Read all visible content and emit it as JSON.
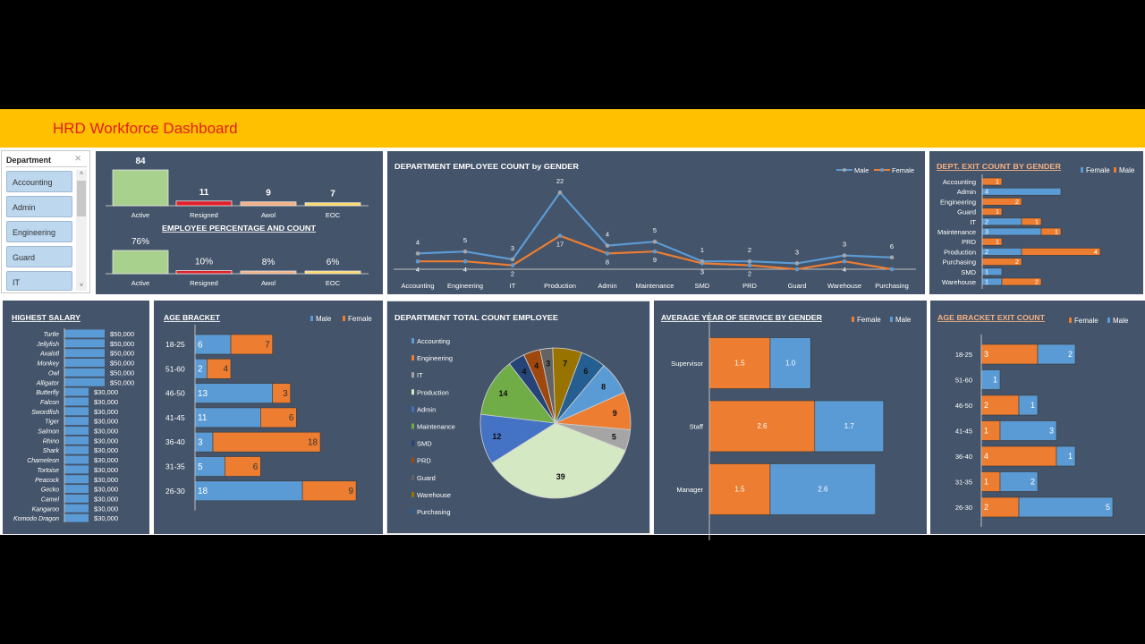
{
  "header": {
    "title": "HRD Workforce Dashboard"
  },
  "slicer": {
    "title": "Department",
    "items": [
      "Accounting",
      "Admin",
      "Engineering",
      "Guard",
      "IT"
    ]
  },
  "colors": {
    "banner": "#FFC000",
    "panel": "#44546A",
    "male": "#5B9BD5",
    "female": "#ED7D31",
    "title_red": "#E0201B"
  },
  "chart_data": [
    {
      "type": "bar",
      "categories": [
        "Active",
        "Resigned",
        "Awol",
        "EOC"
      ],
      "values": [
        84,
        11,
        9,
        7
      ],
      "colors": [
        "#A9D18E",
        "#E0202A",
        "#F4B183",
        "#FFD966"
      ]
    },
    {
      "type": "bar",
      "title": "EMPLOYEE PERCENTAGE AND COUNT",
      "categories": [
        "Active",
        "Resigned",
        "Awol",
        "EOC"
      ],
      "values": [
        76,
        10,
        8,
        6
      ],
      "value_suffix": "%",
      "colors": [
        "#A9D18E",
        "#E0202A",
        "#F4B183",
        "#FFD966"
      ]
    },
    {
      "type": "line",
      "stacked": true,
      "title": "DEPARTMENT EMPLOYEE COUNT by GENDER",
      "legend": "top-right",
      "categories": [
        "Accounting",
        "Engineering",
        "IT",
        "Production",
        "Admin",
        "Maintenance",
        "SMD",
        "PRD",
        "Guard",
        "Warehouse",
        "Purchasing"
      ],
      "series": [
        {
          "name": "Male",
          "values": [
            4,
            5,
            3,
            22,
            4,
            5,
            1,
            2,
            3,
            3,
            6
          ],
          "color": "#5B9BD5",
          "marker": "#A5A5A5"
        },
        {
          "name": "Female",
          "values": [
            4,
            4,
            2,
            17,
            8,
            9,
            3,
            2,
            0,
            4,
            0
          ],
          "color": "#ED7D31",
          "marker": "#5B9BD5"
        }
      ]
    },
    {
      "type": "bar",
      "orientation": "horizontal",
      "stacked": true,
      "title": "DEPT. EXIT COUNT BY GENDER",
      "legend": "top-right",
      "categories": [
        "Accounting",
        "Admin",
        "Engineering",
        "Guard",
        "IT",
        "Maintenance",
        "PRD",
        "Production",
        "Purchasing",
        "SMD",
        "Warehouse"
      ],
      "series": [
        {
          "name": "Female",
          "values": [
            0,
            4,
            0,
            0,
            2,
            3,
            0,
            2,
            0,
            1,
            1
          ],
          "color": "#5B9BD5"
        },
        {
          "name": "Male",
          "values": [
            1,
            0,
            2,
            1,
            1,
            1,
            1,
            4,
            2,
            0,
            2
          ],
          "color": "#ED7D31"
        }
      ]
    },
    {
      "type": "bar",
      "orientation": "horizontal",
      "title": "HIGHEST SALARY",
      "categories": [
        "Turtle",
        "Jellyfish",
        "Axalotl",
        "Monkey",
        "Owl",
        "Alligator",
        "Butterfly",
        "Falcon",
        "Swordfish",
        "Tiger",
        "Salmon",
        "Rhino",
        "Shark",
        "Chameleon",
        "Tortoise",
        "Peacock",
        "Gecko",
        "Camel",
        "Kangaroo",
        "Komodo Dragon"
      ],
      "values": [
        50000,
        50000,
        50000,
        50000,
        50000,
        50000,
        30000,
        30000,
        30000,
        30000,
        30000,
        30000,
        30000,
        30000,
        30000,
        30000,
        30000,
        30000,
        30000,
        30000
      ],
      "value_format": "$#,##0",
      "color": "#5B9BD5"
    },
    {
      "type": "bar",
      "orientation": "horizontal",
      "stacked": true,
      "title": "AGE BRACKET",
      "legend": "top-right",
      "categories": [
        "18-25",
        "51-60",
        "46-50",
        "41-45",
        "36-40",
        "31-35",
        "26-30"
      ],
      "series": [
        {
          "name": "Male",
          "values": [
            6,
            2,
            13,
            11,
            3,
            5,
            18
          ],
          "color": "#5B9BD5"
        },
        {
          "name": "Female",
          "values": [
            7,
            4,
            3,
            6,
            18,
            6,
            9
          ],
          "color": "#ED7D31"
        }
      ]
    },
    {
      "type": "pie",
      "title": "DEPARTMENT TOTAL COUNT EMPLOYEE",
      "legend": "left",
      "categories": [
        "Accounting",
        "Engineering",
        "IT",
        "Production",
        "Admin",
        "Maintenance",
        "SMD",
        "PRD",
        "Guard",
        "Warehouse",
        "Purchasing"
      ],
      "values": [
        8,
        9,
        5,
        39,
        12,
        14,
        4,
        4,
        3,
        7,
        6
      ],
      "colors": [
        "#5B9BD5",
        "#ED7D31",
        "#A5A5A5",
        "#D5E8C4",
        "#4472C4",
        "#70AD47",
        "#264478",
        "#9E480E",
        "#636363",
        "#997300",
        "#255E91"
      ]
    },
    {
      "type": "bar",
      "orientation": "horizontal",
      "stacked": true,
      "title": "AVERAGE YEAR OF SERVICE BY GENDER",
      "legend": "top-right",
      "categories": [
        "Supervisor",
        "Staff",
        "Manager"
      ],
      "series": [
        {
          "name": "Female",
          "values": [
            1.5,
            2.6,
            1.5
          ],
          "color": "#ED7D31"
        },
        {
          "name": "Male",
          "values": [
            1.0,
            1.7,
            2.6
          ],
          "color": "#5B9BD5"
        }
      ]
    },
    {
      "type": "bar",
      "orientation": "horizontal",
      "stacked": true,
      "title": "AGE BRACKET EXIT COUNT",
      "legend": "top-right",
      "categories": [
        "18-25",
        "51-60",
        "46-50",
        "41-45",
        "36-40",
        "31-35",
        "26-30"
      ],
      "series": [
        {
          "name": "Female",
          "values": [
            3,
            0,
            2,
            1,
            4,
            1,
            2
          ],
          "color": "#ED7D31"
        },
        {
          "name": "Male",
          "values": [
            2,
            1,
            1,
            3,
            1,
            2,
            5
          ],
          "color": "#5B9BD5"
        }
      ]
    }
  ]
}
